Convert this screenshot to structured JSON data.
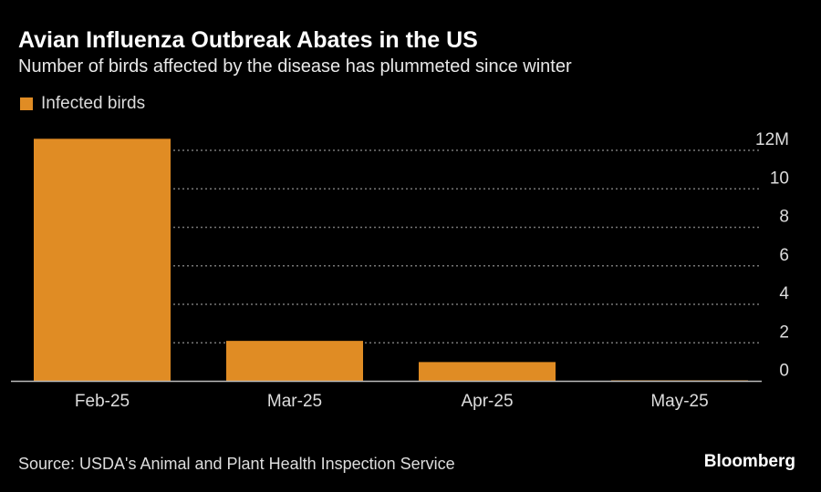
{
  "title": "Avian Influenza Outbreak Abates in the US",
  "subtitle": "Number of birds affected by the disease has plummeted since winter",
  "source": "Source: USDA's Animal and Plant Health Inspection Service",
  "logo": "Bloomberg",
  "colors": {
    "bar": "#e08c24",
    "background": "#000000",
    "grid": "#777777",
    "axis": "#bbbbbb"
  },
  "chart_data": {
    "type": "bar",
    "title": "Avian Influenza Outbreak Abates in the US",
    "subtitle": "Number of birds affected by the disease has plummeted since winter",
    "categories": [
      "Feb-25",
      "Mar-25",
      "Apr-25",
      "May-25"
    ],
    "series": [
      {
        "name": "Infected birds",
        "values": [
          12.6,
          2.1,
          1.0,
          0.05
        ]
      }
    ],
    "unit": "millions",
    "ylim": [
      0,
      12
    ],
    "yticks": [
      0,
      2,
      4,
      6,
      8,
      10,
      12
    ],
    "ytick_labels": [
      "0",
      "2",
      "4",
      "6",
      "8",
      "10",
      "12M"
    ],
    "y_axis_position": "right",
    "grid": "horizontal dotted",
    "legend": "top-left"
  }
}
